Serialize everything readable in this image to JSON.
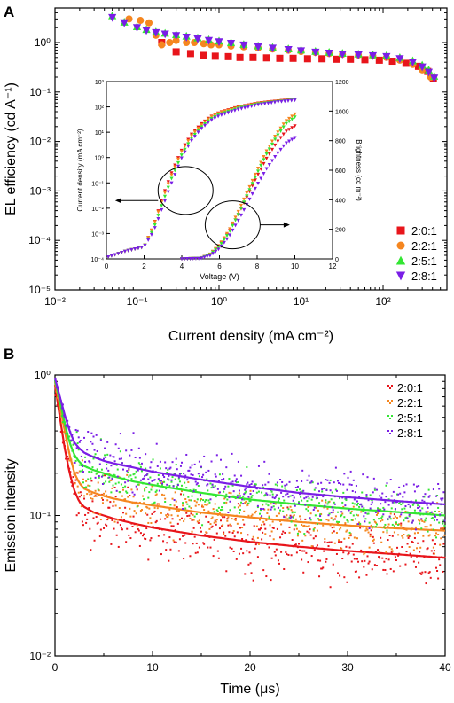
{
  "panels": {
    "a": {
      "letter": "A"
    },
    "b": {
      "letter": "B"
    }
  },
  "colors": {
    "2:0:1": "#e8151b",
    "2:2:1": "#f5861f",
    "2:5:1": "#33e633",
    "2:8:1": "#7a1ee6"
  },
  "chart_data": [
    {
      "id": "A-main",
      "type": "scatter",
      "xlabel": "Current density (mA cm⁻²)",
      "ylabel": "EL efficiency (cd A⁻¹)",
      "xscale": "log",
      "yscale": "log",
      "xlim": [
        0.01,
        600
      ],
      "ylim": [
        1e-05,
        5
      ],
      "x_ticks": [
        "10⁻²",
        "10⁻¹",
        "10⁰",
        "10¹",
        "10²"
      ],
      "y_ticks": [
        "10⁻⁵",
        "10⁻⁴",
        "10⁻³",
        "10⁻²",
        "10⁻¹",
        "10⁰"
      ],
      "legend_position": "bottom-right",
      "series": [
        {
          "name": "2:0:1",
          "marker": "square",
          "x": [
            0.2,
            0.3,
            0.45,
            0.65,
            0.9,
            1.3,
            1.8,
            2.6,
            3.8,
            5.5,
            8,
            12,
            18,
            27,
            40,
            60,
            90,
            130,
            190,
            270,
            350,
            410
          ],
          "y": [
            1.0,
            0.65,
            0.6,
            0.55,
            0.53,
            0.52,
            0.5,
            0.5,
            0.49,
            0.48,
            0.48,
            0.47,
            0.47,
            0.46,
            0.46,
            0.45,
            0.44,
            0.42,
            0.38,
            0.33,
            0.26,
            0.19
          ]
        },
        {
          "name": "2:2:1",
          "marker": "circle",
          "x": [
            0.08,
            0.11,
            0.14,
            0.17,
            0.2,
            0.25,
            0.3,
            0.4,
            0.5,
            0.65,
            0.8,
            1.0,
            1.4,
            2,
            3,
            4.5,
            7,
            10,
            15,
            22,
            32,
            50,
            75,
            110,
            160,
            230,
            300,
            380
          ],
          "y": [
            3.0,
            2.8,
            2.5,
            1.4,
            0.9,
            1.0,
            1.1,
            1.0,
            1.0,
            0.95,
            0.9,
            0.9,
            0.85,
            0.82,
            0.78,
            0.74,
            0.7,
            0.66,
            0.63,
            0.6,
            0.58,
            0.56,
            0.54,
            0.5,
            0.44,
            0.36,
            0.28,
            0.2
          ]
        },
        {
          "name": "2:5:1",
          "marker": "triangle",
          "x": [
            0.05,
            0.07,
            0.1,
            0.13,
            0.17,
            0.22,
            0.3,
            0.4,
            0.55,
            0.75,
            1.0,
            1.4,
            2,
            3,
            4.5,
            7,
            10,
            15,
            22,
            32,
            50,
            75,
            110,
            160,
            230,
            300,
            360,
            420
          ],
          "y": [
            3.5,
            2.6,
            2.1,
            1.85,
            1.65,
            1.55,
            1.45,
            1.35,
            1.25,
            1.15,
            1.08,
            1.0,
            0.92,
            0.86,
            0.8,
            0.75,
            0.71,
            0.67,
            0.64,
            0.61,
            0.59,
            0.57,
            0.55,
            0.5,
            0.43,
            0.35,
            0.28,
            0.21
          ]
        },
        {
          "name": "2:8:1",
          "marker": "triangle-down",
          "x": [
            0.05,
            0.07,
            0.1,
            0.13,
            0.17,
            0.22,
            0.3,
            0.4,
            0.55,
            0.75,
            1.0,
            1.4,
            2,
            3,
            4.5,
            7,
            10,
            15,
            22,
            32,
            50,
            75,
            110,
            160,
            230,
            300,
            360,
            420
          ],
          "y": [
            3.2,
            2.5,
            2.0,
            1.75,
            1.58,
            1.48,
            1.38,
            1.28,
            1.18,
            1.1,
            1.03,
            0.96,
            0.89,
            0.82,
            0.77,
            0.72,
            0.68,
            0.64,
            0.61,
            0.58,
            0.56,
            0.54,
            0.52,
            0.47,
            0.4,
            0.32,
            0.25,
            0.19
          ]
        }
      ]
    },
    {
      "id": "A-inset",
      "type": "line",
      "xlabel": "Voltage (V)",
      "ylabel": "Current density (mA cm⁻²)",
      "y2label": "Brightness (cd m⁻²)",
      "yscale": "log",
      "xlim": [
        0,
        12
      ],
      "ylim": [
        0.0001,
        1000
      ],
      "y2lim": [
        0,
        1200
      ],
      "x_ticks": [
        "0",
        "2",
        "4",
        "6",
        "8",
        "10",
        "12"
      ],
      "y_ticks": [
        "10⁻⁴",
        "10⁻³",
        "10⁻²",
        "10⁻¹",
        "10⁰",
        "10¹",
        "10²",
        "10³"
      ],
      "y2_ticks": [
        "0",
        "200",
        "400",
        "600",
        "800",
        "1000",
        "1200"
      ],
      "current_density": [
        {
          "name": "2:0:1",
          "x": [
            0.1,
            1,
            2,
            2.5,
            3,
            3.5,
            4,
            4.5,
            5,
            5.5,
            6,
            7,
            8,
            9,
            10
          ],
          "y": [
            0.00012,
            0.0002,
            0.0003,
            0.002,
            0.03,
            0.3,
            2,
            8,
            20,
            40,
            60,
            100,
            140,
            170,
            200
          ]
        },
        {
          "name": "2:2:1",
          "x": [
            0.1,
            1,
            2,
            2.5,
            3,
            3.5,
            4,
            4.5,
            5,
            5.5,
            6,
            7,
            8,
            9,
            10
          ],
          "y": [
            0.00012,
            0.0002,
            0.0003,
            0.002,
            0.025,
            0.25,
            1.8,
            7,
            18,
            38,
            58,
            95,
            135,
            165,
            195
          ]
        },
        {
          "name": "2:5:1",
          "x": [
            0.1,
            1,
            2,
            2.5,
            3,
            3.5,
            4,
            4.5,
            5,
            5.5,
            6,
            7,
            8,
            9,
            10
          ],
          "y": [
            0.00012,
            0.0002,
            0.0003,
            0.0015,
            0.018,
            0.18,
            1.3,
            5.5,
            15,
            32,
            50,
            88,
            128,
            160,
            190
          ]
        },
        {
          "name": "2:8:1",
          "x": [
            0.1,
            1,
            2,
            2.5,
            3,
            3.5,
            4,
            4.5,
            5,
            5.5,
            6,
            7,
            8,
            9,
            10
          ],
          "y": [
            0.00012,
            0.0002,
            0.0003,
            0.0012,
            0.012,
            0.12,
            1.0,
            4.5,
            13,
            28,
            45,
            80,
            120,
            155,
            185
          ]
        }
      ],
      "brightness": [
        {
          "name": "2:0:1",
          "x": [
            4,
            5,
            5.5,
            6,
            6.5,
            7,
            7.5,
            8,
            8.5,
            9,
            9.5,
            10
          ],
          "y": [
            0,
            5,
            30,
            90,
            180,
            300,
            430,
            560,
            680,
            780,
            860,
            900
          ]
        },
        {
          "name": "2:2:1",
          "x": [
            4,
            5,
            5.5,
            6,
            6.5,
            7,
            7.5,
            8,
            8.5,
            9,
            9.5,
            10
          ],
          "y": [
            0,
            5,
            32,
            95,
            190,
            320,
            460,
            600,
            730,
            840,
            930,
            980
          ]
        },
        {
          "name": "2:5:1",
          "x": [
            4,
            5,
            5.5,
            6,
            6.5,
            7,
            7.5,
            8,
            8.5,
            9,
            9.5,
            10
          ],
          "y": [
            0,
            4,
            28,
            85,
            175,
            300,
            440,
            580,
            710,
            820,
            910,
            960
          ]
        },
        {
          "name": "2:8:1",
          "x": [
            4,
            5,
            5.5,
            6,
            6.5,
            7,
            7.5,
            8,
            8.5,
            9,
            9.5,
            10
          ],
          "y": [
            0,
            3,
            22,
            70,
            150,
            260,
            380,
            500,
            610,
            700,
            780,
            820
          ]
        }
      ]
    },
    {
      "id": "B",
      "type": "scatter",
      "xlabel": "Time (μs)",
      "ylabel": "Emission intensity",
      "yscale": "log",
      "xlim": [
        0,
        40
      ],
      "ylim": [
        0.01,
        1
      ],
      "x_ticks": [
        "0",
        "10",
        "20",
        "30",
        "40"
      ],
      "y_ticks": [
        "10⁻²",
        "10⁻¹",
        "10⁰"
      ],
      "legend_position": "top-right",
      "series": [
        {
          "name": "2:0:1",
          "fit_x": [
            0,
            0.5,
            1,
            1.5,
            2,
            2.5,
            3,
            4,
            5,
            6,
            8,
            10,
            15,
            20,
            25,
            30,
            35,
            40
          ],
          "fit_y": [
            0.85,
            0.5,
            0.3,
            0.2,
            0.15,
            0.125,
            0.115,
            0.105,
            0.1,
            0.095,
            0.088,
            0.082,
            0.072,
            0.065,
            0.06,
            0.056,
            0.053,
            0.05
          ]
        },
        {
          "name": "2:2:1",
          "fit_x": [
            0,
            0.5,
            1,
            1.5,
            2,
            2.5,
            3,
            4,
            5,
            6,
            8,
            10,
            15,
            20,
            25,
            30,
            35,
            40
          ],
          "fit_y": [
            0.9,
            0.6,
            0.4,
            0.27,
            0.2,
            0.17,
            0.155,
            0.145,
            0.138,
            0.132,
            0.124,
            0.118,
            0.105,
            0.097,
            0.09,
            0.085,
            0.081,
            0.078
          ]
        },
        {
          "name": "2:5:1",
          "fit_x": [
            0,
            0.5,
            1,
            1.5,
            2,
            2.5,
            3,
            4,
            5,
            6,
            8,
            10,
            15,
            20,
            25,
            30,
            35,
            40
          ],
          "fit_y": [
            0.92,
            0.65,
            0.45,
            0.33,
            0.27,
            0.24,
            0.225,
            0.21,
            0.2,
            0.19,
            0.175,
            0.165,
            0.145,
            0.13,
            0.12,
            0.112,
            0.106,
            0.1
          ]
        },
        {
          "name": "2:8:1",
          "fit_x": [
            0,
            0.5,
            1,
            1.5,
            2,
            2.5,
            3,
            4,
            5,
            6,
            8,
            10,
            15,
            20,
            25,
            30,
            35,
            40
          ],
          "fit_y": [
            0.95,
            0.7,
            0.52,
            0.4,
            0.33,
            0.3,
            0.28,
            0.26,
            0.245,
            0.235,
            0.22,
            0.205,
            0.18,
            0.16,
            0.145,
            0.135,
            0.127,
            0.12
          ]
        }
      ]
    }
  ]
}
